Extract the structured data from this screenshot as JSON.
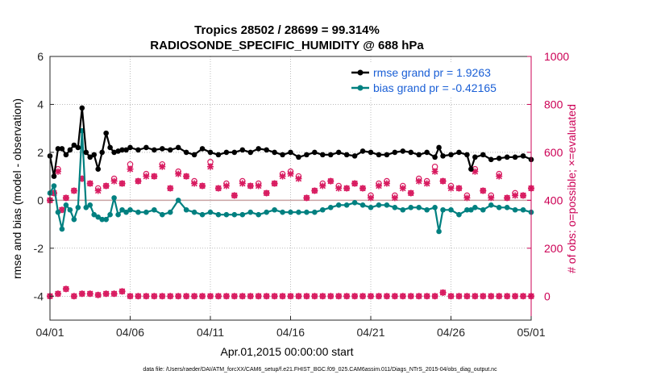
{
  "chart_data": {
    "type": "line",
    "title": [
      "Tropics 28502 / 28699 = 99.314%",
      "RADIOSONDE_SPECIFIC_HUMIDITY @ 688 hPa"
    ],
    "xlabel": "Apr.01,2015 00:00:00 start",
    "ylabel": "rmse and bias (model - observation)",
    "ylabel_right": "# of obs: o=possible; ×=evaluated",
    "xlim": [
      0,
      30
    ],
    "ylim": [
      -5,
      6
    ],
    "ylim_right": [
      -100,
      1000
    ],
    "xticks": [
      0,
      5,
      10,
      15,
      20,
      25,
      30
    ],
    "xtick_labels": [
      "04/01",
      "04/06",
      "04/11",
      "04/16",
      "04/21",
      "04/26",
      "05/01"
    ],
    "yticks": [
      -4,
      -2,
      0,
      2,
      4,
      6
    ],
    "ytick_labels": [
      "-4",
      "-2",
      "0",
      "2",
      "4",
      "6"
    ],
    "yticks_right": [
      0,
      200,
      400,
      600,
      800,
      1000
    ],
    "ytick_labels_right": [
      "0",
      "200",
      "400",
      "600",
      "800",
      "1000"
    ],
    "legend": [
      "rmse grand pr = 1.9263",
      "bias grand pr = -0.42165"
    ],
    "legend_position": "top-right",
    "colors": {
      "rmse": "#000000",
      "bias": "#008080",
      "obs": "#d81b60",
      "zero": "#c9a3a3",
      "right_axis": "#cc0055"
    },
    "series": [
      {
        "name": "rmse",
        "x": [
          0,
          0.25,
          0.5,
          0.75,
          1,
          1.25,
          1.5,
          1.75,
          2,
          2.25,
          2.5,
          2.75,
          3,
          3.25,
          3.5,
          3.75,
          4,
          4.25,
          4.5,
          4.75,
          5,
          5.5,
          6,
          6.5,
          7,
          7.5,
          8,
          8.5,
          9,
          9.5,
          10,
          10.5,
          11,
          11.5,
          12,
          12.5,
          13,
          13.5,
          14,
          14.5,
          15,
          15.5,
          16,
          16.5,
          17,
          17.5,
          18,
          18.5,
          19,
          19.5,
          20,
          20.5,
          21,
          21.5,
          22,
          22.5,
          23,
          23.5,
          24,
          24.25,
          24.5,
          25,
          25.5,
          26,
          26.25,
          26.5,
          27,
          27.5,
          28,
          28.5,
          29,
          29.5,
          30
        ],
        "values": [
          1.85,
          1.0,
          2.15,
          2.15,
          1.9,
          2.1,
          2.3,
          2.2,
          3.85,
          2.0,
          1.8,
          1.9,
          1.3,
          2.0,
          2.8,
          2.2,
          2.0,
          2.05,
          2.1,
          2.1,
          2.2,
          2.1,
          2.2,
          2.1,
          2.15,
          2.1,
          2.2,
          2.0,
          1.9,
          2.15,
          2.0,
          1.9,
          2.0,
          2.0,
          2.1,
          2.0,
          2.15,
          2.1,
          2.0,
          1.9,
          2.0,
          1.8,
          1.9,
          2.0,
          1.9,
          1.9,
          2.0,
          1.9,
          1.85,
          2.05,
          2.0,
          1.9,
          1.9,
          2.0,
          2.05,
          2.0,
          1.9,
          2.0,
          1.8,
          2.2,
          1.85,
          1.9,
          2.0,
          1.9,
          1.3,
          1.8,
          1.9,
          1.7,
          1.75,
          1.8,
          1.8,
          1.85,
          1.7
        ]
      },
      {
        "name": "bias",
        "x": [
          0,
          0.25,
          0.5,
          0.75,
          1,
          1.25,
          1.5,
          1.75,
          2,
          2.25,
          2.5,
          2.75,
          3,
          3.25,
          3.5,
          3.75,
          4,
          4.25,
          4.5,
          4.75,
          5,
          5.5,
          6,
          6.5,
          7,
          7.5,
          8,
          8.5,
          9,
          9.5,
          10,
          10.5,
          11,
          11.5,
          12,
          12.5,
          13,
          13.5,
          14,
          14.5,
          15,
          15.5,
          16,
          16.5,
          17,
          17.5,
          18,
          18.5,
          19,
          19.5,
          20,
          20.5,
          21,
          21.5,
          22,
          22.5,
          23,
          23.5,
          24,
          24.25,
          24.5,
          25,
          25.5,
          26,
          26.25,
          26.5,
          27,
          27.5,
          28,
          28.5,
          29,
          29.5,
          30
        ],
        "values": [
          0.3,
          0.6,
          -0.5,
          -1.2,
          -0.2,
          -0.4,
          -0.8,
          -0.3,
          2.9,
          -0.3,
          -0.2,
          -0.6,
          -0.7,
          -0.8,
          -0.8,
          -0.6,
          0.1,
          -0.6,
          -0.4,
          -0.5,
          -0.4,
          -0.5,
          -0.5,
          -0.4,
          -0.6,
          -0.5,
          0.0,
          -0.4,
          -0.5,
          -0.6,
          -0.5,
          -0.6,
          -0.6,
          -0.6,
          -0.6,
          -0.5,
          -0.6,
          -0.5,
          -0.4,
          -0.5,
          -0.5,
          -0.5,
          -0.5,
          -0.5,
          -0.4,
          -0.3,
          -0.2,
          -0.2,
          -0.1,
          -0.2,
          -0.3,
          -0.2,
          -0.2,
          -0.3,
          -0.4,
          -0.3,
          -0.3,
          -0.4,
          -0.3,
          -1.3,
          -0.4,
          -0.4,
          -0.6,
          -0.4,
          -0.4,
          -0.3,
          -0.4,
          -0.2,
          -0.3,
          -0.3,
          -0.4,
          -0.4,
          -0.5
        ]
      },
      {
        "name": "obs possible",
        "axis": "right",
        "x": [
          0,
          0.25,
          0.5,
          0.75,
          1,
          1.5,
          2,
          2.5,
          3,
          3.5,
          4,
          4.5,
          5,
          5.5,
          6,
          6.5,
          7,
          7.5,
          8,
          8.5,
          9,
          9.5,
          10,
          10.5,
          11,
          11.5,
          12,
          12.5,
          13,
          13.5,
          14,
          14.5,
          15,
          15.5,
          16,
          16.5,
          17,
          17.5,
          18,
          18.5,
          19,
          19.5,
          20,
          20.5,
          21,
          21.5,
          22,
          22.5,
          23,
          23.5,
          24,
          24.5,
          25,
          25.5,
          26,
          26.5,
          27,
          27.5,
          28,
          28.5,
          29,
          29.5,
          30
        ],
        "values": [
          400,
          430,
          530,
          360,
          410,
          440,
          490,
          470,
          450,
          460,
          490,
          470,
          550,
          480,
          510,
          500,
          550,
          450,
          520,
          500,
          480,
          460,
          560,
          450,
          470,
          420,
          480,
          460,
          470,
          430,
          470,
          510,
          520,
          500,
          410,
          440,
          470,
          480,
          460,
          450,
          470,
          450,
          420,
          470,
          480,
          420,
          460,
          430,
          490,
          480,
          540,
          480,
          460,
          450,
          420,
          530,
          440,
          420,
          510,
          410,
          430,
          420,
          450
        ],
        "values_evaluated": [
          400,
          430,
          520,
          360,
          410,
          440,
          490,
          470,
          440,
          460,
          480,
          470,
          530,
          480,
          500,
          500,
          540,
          450,
          510,
          500,
          470,
          460,
          540,
          450,
          460,
          420,
          470,
          460,
          460,
          430,
          470,
          500,
          510,
          490,
          410,
          440,
          460,
          480,
          450,
          450,
          470,
          450,
          410,
          460,
          470,
          410,
          450,
          430,
          480,
          470,
          520,
          480,
          450,
          450,
          410,
          520,
          440,
          410,
          500,
          410,
          420,
          420,
          450
        ]
      },
      {
        "name": "obs low",
        "axis": "right",
        "x": [
          0,
          0.5,
          1,
          1.5,
          2,
          2.5,
          3,
          3.5,
          4,
          4.5,
          5,
          5.5,
          6,
          6.5,
          7,
          7.5,
          8,
          8.5,
          9,
          9.5,
          10,
          10.5,
          11,
          11.5,
          12,
          12.5,
          13,
          13.5,
          14,
          14.5,
          15,
          15.5,
          16,
          16.5,
          17,
          17.5,
          18,
          18.5,
          19,
          19.5,
          20,
          20.5,
          21,
          21.5,
          22,
          22.5,
          23,
          23.5,
          24,
          24.5,
          25,
          25.5,
          26,
          26.5,
          27,
          27.5,
          28,
          28.5,
          29,
          29.5,
          30
        ],
        "values": [
          0,
          10,
          30,
          0,
          10,
          10,
          5,
          10,
          10,
          20,
          0,
          0,
          0,
          0,
          0,
          0,
          0,
          0,
          0,
          0,
          0,
          0,
          0,
          0,
          0,
          0,
          0,
          0,
          0,
          0,
          0,
          0,
          0,
          0,
          0,
          0,
          0,
          0,
          0,
          0,
          0,
          0,
          0,
          0,
          0,
          0,
          0,
          0,
          0,
          15,
          0,
          0,
          0,
          0,
          0,
          0,
          0,
          0,
          0,
          0,
          0
        ]
      }
    ]
  },
  "footnote": "data file: /Users/raeder/DAI/ATM_forcXX/CAM6_setup/f.e21.FHIST_BGC.f09_025.CAM6assim.011/Diags_NTrS_2015-04/obs_diag_output.nc"
}
